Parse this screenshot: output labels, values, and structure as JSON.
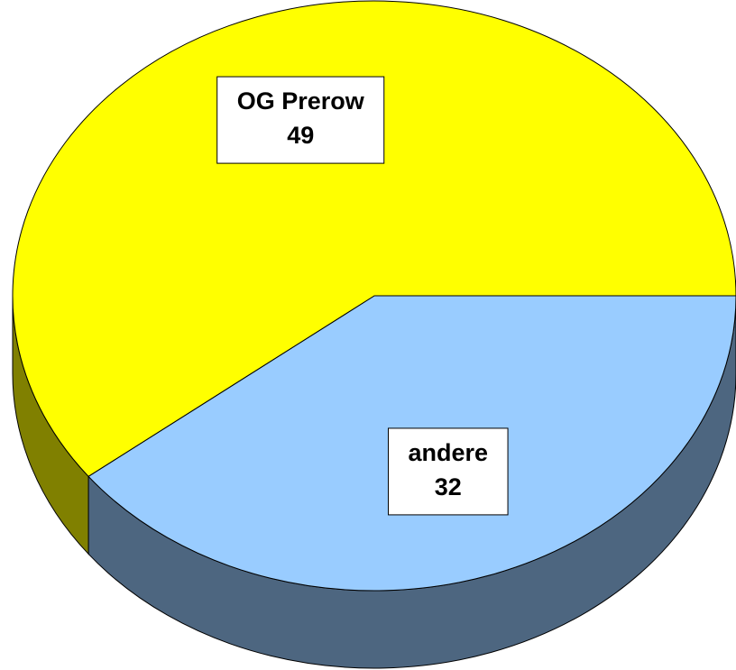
{
  "chart_data": {
    "type": "pie3d",
    "categories": [
      "andere",
      "OG Prerow"
    ],
    "values": [
      32,
      49
    ],
    "colors": [
      "#99ccff",
      "#ffff00"
    ]
  }
}
